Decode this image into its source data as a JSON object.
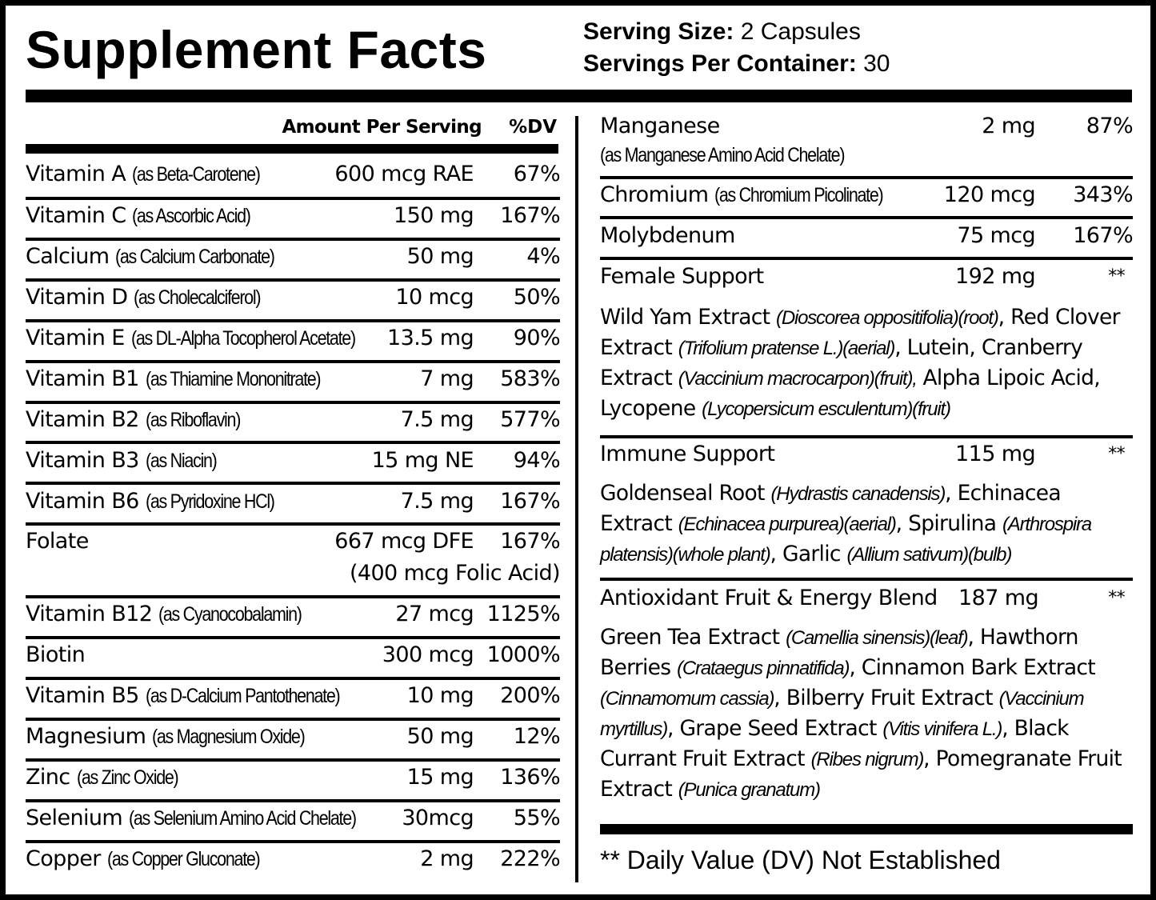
{
  "header": {
    "title": "Supplement Facts",
    "serving_size_label": "Serving Size:",
    "serving_size_value": "2 Capsules",
    "servings_per_container_label": "Servings Per Container:",
    "servings_per_container_value": "30"
  },
  "columns": {
    "amount_label": "Amount Per Serving",
    "dv_label": "%DV"
  },
  "left_rows": [
    {
      "name": "Vitamin A",
      "source": "(as Beta-Carotene)",
      "amount": "600 mcg RAE",
      "dv": "67%"
    },
    {
      "name": "Vitamin C",
      "source": "(as Ascorbic Acid)",
      "amount": "150 mg",
      "dv": "167%"
    },
    {
      "name": "Calcium",
      "source": "(as Calcium Carbonate)",
      "amount": "50 mg",
      "dv": "4%"
    },
    {
      "name": "Vitamin D",
      "source": "(as Cholecalciferol)",
      "amount": "10 mcg",
      "dv": "50%"
    },
    {
      "name": "Vitamin E",
      "source": "(as DL-Alpha Tocopherol Acetate)",
      "amount": "13.5 mg",
      "dv": "90%"
    },
    {
      "name": "Vitamin B1",
      "source": "(as Thiamine Mononitrate)",
      "amount": "7 mg",
      "dv": "583%"
    },
    {
      "name": "Vitamin B2",
      "source": "(as Riboflavin)",
      "amount": "7.5 mg",
      "dv": "577%"
    },
    {
      "name": "Vitamin B3",
      "source": "(as Niacin)",
      "amount": "15 mg NE",
      "dv": "94%"
    },
    {
      "name": "Vitamin B6",
      "source": "(as Pyridoxine HCl)",
      "amount": "7.5 mg",
      "dv": "167%"
    },
    {
      "name": "Folate",
      "source": "",
      "amount": "667 mcg DFE",
      "dv": "167%",
      "note": "(400 mcg Folic Acid)"
    },
    {
      "name": "Vitamin B12",
      "source": "(as Cyanocobalamin)",
      "amount": "27 mcg",
      "dv": "1125%"
    },
    {
      "name": "Biotin",
      "source": "",
      "amount": "300 mcg",
      "dv": "1000%"
    },
    {
      "name": "Vitamin B5",
      "source": "(as D-Calcium Pantothenate)",
      "amount": "10 mg",
      "dv": "200%"
    },
    {
      "name": "Magnesium",
      "source": "(as Magnesium Oxide)",
      "amount": "50 mg",
      "dv": "12%"
    },
    {
      "name": "Zinc",
      "source": "(as Zinc Oxide)",
      "amount": "15 mg",
      "dv": "136%"
    },
    {
      "name": "Selenium",
      "source": "(as Selenium Amino Acid Chelate)",
      "amount": "30mcg",
      "dv": "55%"
    },
    {
      "name": "Copper",
      "source": "(as Copper Gluconate)",
      "amount": "2 mg",
      "dv": "222%"
    }
  ],
  "right_rows": [
    {
      "name": "Manganese",
      "source": "(as Manganese Amino Acid Chelate)",
      "amount": "2 mg",
      "dv": "87%"
    },
    {
      "name": "Chromium",
      "source": "(as Chromium Picolinate)",
      "amount": "120 mcg",
      "dv": "343%"
    },
    {
      "name": "Molybdenum",
      "source": "",
      "amount": "75 mcg",
      "dv": "167%"
    }
  ],
  "blends": [
    {
      "name": "Female Support",
      "amount": "192 mg",
      "dv": "**",
      "ingredients": [
        {
          "text": "Wild Yam Extract ",
          "latin": "(Dioscorea oppositifolia)(root)",
          "after": ", Red Clover Extract "
        },
        {
          "text": "",
          "latin": "(Trifolium pratense L.)(aerial)",
          "after": ", Lutein, Cranberry Extract "
        },
        {
          "text": "",
          "latin": "(Vaccinium macrocarpon)(fruit),",
          "after": " Alpha Lipoic Acid, Lycopene "
        },
        {
          "text": "",
          "latin": "(Lycopersicum esculentum)(fruit)",
          "after": ""
        }
      ]
    },
    {
      "name": "Immune Support",
      "amount": "115 mg",
      "dv": "**",
      "ingredients": [
        {
          "text": "Goldenseal Root ",
          "latin": "(Hydrastis canadensis)",
          "after": ", Echinacea Extract "
        },
        {
          "text": "",
          "latin": "(Echinacea purpurea)(aerial)",
          "after": ", Spirulina "
        },
        {
          "text": "",
          "latin": "(Arthrospira platensis)(whole plant)",
          "after": ", Garlic "
        },
        {
          "text": "",
          "latin": "(Allium sativum)(bulb)",
          "after": ""
        }
      ]
    },
    {
      "name": "Antioxidant Fruit & Energy Blend",
      "amount": "187 mg",
      "dv": "**",
      "ingredients": [
        {
          "text": "Green Tea Extract ",
          "latin": "(Camellia sinensis)(leaf)",
          "after": ", Hawthorn Berries "
        },
        {
          "text": "",
          "latin": "(Crataegus pinnatifida)",
          "after": ", Cinnamon Bark Extract "
        },
        {
          "text": "",
          "latin": "(Cinnamomum cassia)",
          "after": ", Bilberry Fruit Extract "
        },
        {
          "text": "",
          "latin": "(Vaccinium myrtillus)",
          "after": ", Grape Seed Extract "
        },
        {
          "text": "",
          "latin": "(Vitis vinifera L.)",
          "after": ", Black Currant Fruit Extract "
        },
        {
          "text": "",
          "latin": "(Ribes nigrum)",
          "after": ", Pomegranate Fruit Extract "
        },
        {
          "text": "",
          "latin": "(Punica granatum)",
          "after": ""
        }
      ]
    }
  ],
  "footnote": "** Daily Value (DV) Not Established"
}
